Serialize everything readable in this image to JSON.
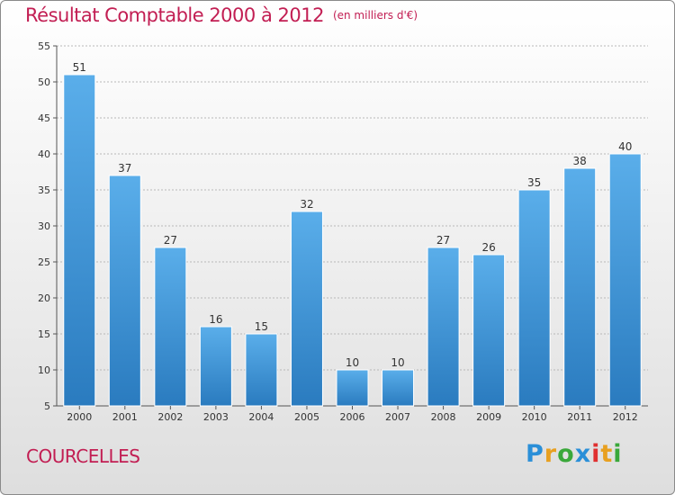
{
  "title": "Résultat Comptable 2000 à 2012",
  "subtitle": "(en milliers d'€)",
  "commune": "COURCELLES",
  "logo": {
    "letters": [
      "P",
      "r",
      "o",
      "x",
      "i",
      "t",
      "i"
    ],
    "colors": [
      "#2a8fd8",
      "#e8a020",
      "#3aa83a",
      "#2a8fd8",
      "#e03030",
      "#e8a020",
      "#3aa83a"
    ]
  },
  "colors": {
    "bar_top": "#5aaeea",
    "bar_bottom": "#2a7bbf",
    "title": "#c21e53"
  },
  "chart_data": {
    "type": "bar",
    "categories": [
      "2000",
      "2001",
      "2002",
      "2003",
      "2004",
      "2005",
      "2006",
      "2007",
      "2008",
      "2009",
      "2010",
      "2011",
      "2012"
    ],
    "values": [
      51,
      37,
      27,
      16,
      15,
      32,
      10,
      10,
      27,
      26,
      35,
      38,
      40
    ],
    "ylim": [
      5,
      55
    ],
    "yticks": [
      5,
      10,
      15,
      20,
      25,
      30,
      35,
      40,
      45,
      50,
      55
    ],
    "grid": true,
    "legend": "none"
  }
}
